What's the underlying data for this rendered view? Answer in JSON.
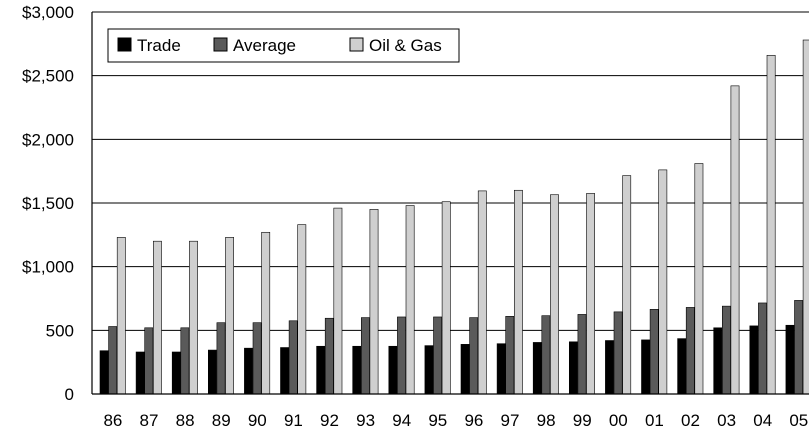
{
  "chart_data": {
    "type": "bar",
    "title": "",
    "xlabel": "",
    "ylabel": "",
    "ylim": [
      0,
      3000
    ],
    "y_ticks": [
      "0",
      "500",
      "$1,000",
      "$1,500",
      "$2,000",
      "$2,500",
      "$3,000"
    ],
    "y_tick_values": [
      0,
      500,
      1000,
      1500,
      2000,
      2500,
      3000
    ],
    "grid": true,
    "legend": "top-left",
    "categories": [
      "86",
      "87",
      "88",
      "89",
      "90",
      "91",
      "92",
      "93",
      "94",
      "95",
      "96",
      "97",
      "98",
      "99",
      "00",
      "01",
      "02",
      "03",
      "04",
      "05"
    ],
    "series": [
      {
        "name": "Trade",
        "color": "#000000",
        "values": [
          340,
          330,
          330,
          345,
          360,
          365,
          375,
          375,
          375,
          380,
          390,
          395,
          405,
          410,
          420,
          425,
          435,
          520,
          535,
          540
        ]
      },
      {
        "name": "Average",
        "color": "#5a5a5a",
        "values": [
          530,
          520,
          520,
          560,
          560,
          575,
          595,
          600,
          605,
          605,
          600,
          610,
          615,
          625,
          645,
          665,
          680,
          690,
          715,
          735
        ]
      },
      {
        "name": "Oil & Gas",
        "color": "#cfcfcf",
        "values": [
          1230,
          1200,
          1200,
          1230,
          1270,
          1330,
          1460,
          1450,
          1480,
          1510,
          1595,
          1600,
          1565,
          1575,
          1715,
          1760,
          1810,
          2420,
          2660,
          2780
        ]
      }
    ]
  }
}
